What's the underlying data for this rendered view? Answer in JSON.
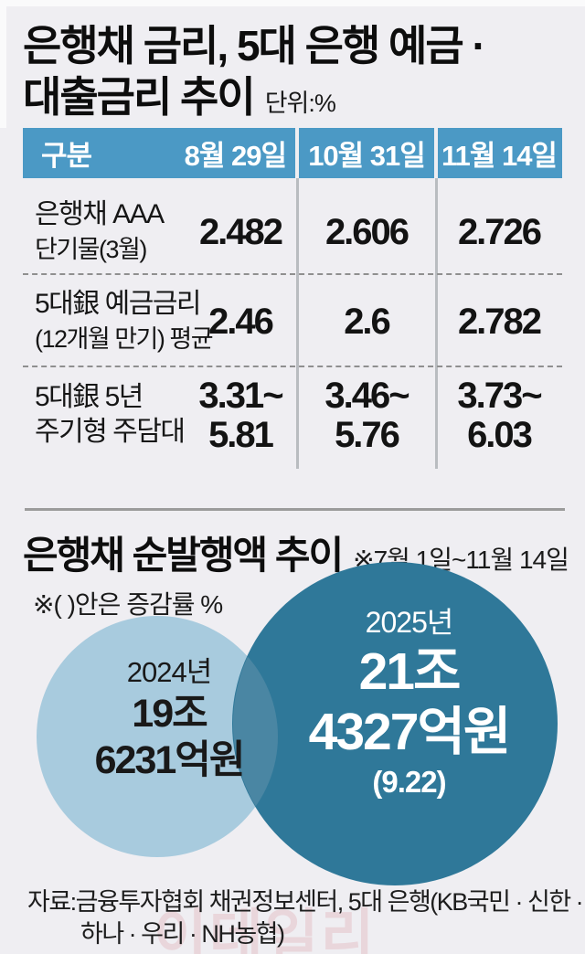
{
  "section1": {
    "title_line1": "은행채 금리, 5대 은행 예금 ·",
    "title_line2": "대출금리 추이",
    "unit_label": "단위:%",
    "table": {
      "header": [
        "구분",
        "8월 29일",
        "10월 31일",
        "11월 14일"
      ],
      "rows": [
        {
          "label_line1": "은행채 AAA",
          "label_line2": "단기물(3월)",
          "cells": [
            [
              "2.482"
            ],
            [
              "2.606"
            ],
            [
              "2.726"
            ]
          ]
        },
        {
          "label_line1": "5대銀 예금금리",
          "label_line2": "(12개월 만기) 평균",
          "cells": [
            [
              "2.46"
            ],
            [
              "2.6"
            ],
            [
              "2.782"
            ]
          ]
        },
        {
          "label_line1": "5대銀 5년",
          "label_line2": "주기형 주담대",
          "cells": [
            [
              "3.31~",
              "5.81"
            ],
            [
              "3.46~",
              "5.76"
            ],
            [
              "3.73~",
              "6.03"
            ]
          ]
        }
      ]
    }
  },
  "section2": {
    "title": "은행채 순발행액 추이",
    "period_note": "※7월 1일~11월 14일",
    "change_note": "※(  )안은 증감률 %",
    "bubbles": [
      {
        "year": "2024년",
        "amount_line1": "19조",
        "amount_line2": "6231억원",
        "change": ""
      },
      {
        "year": "2025년",
        "amount_line1": "21조",
        "amount_line2": "4327억원",
        "change": "(9.22)"
      }
    ]
  },
  "source": {
    "line1": "자료:금융투자협회 채권정보센터, 5대 은행(KB국민 · 신한 ·",
    "line2": "하나 · 우리 · NH농협)"
  },
  "watermark": "이데일리",
  "colors": {
    "background": "#efeef2",
    "table_header": "#4b99c5",
    "bubble_2024": "#a8cbde",
    "bubble_2025": "#2f7899",
    "bubble_overlap": "#4a86a3",
    "divider": "#9b9b9b"
  },
  "chart_data": [
    {
      "type": "table",
      "title": "은행채 금리, 5대 은행 예금 · 대출금리 추이",
      "unit": "%",
      "columns": [
        "구분",
        "8월 29일",
        "10월 31일",
        "11월 14일"
      ],
      "rows": [
        [
          "은행채 AAA 단기물(3월)",
          "2.482",
          "2.606",
          "2.726"
        ],
        [
          "5대銀 예금금리 (12개월 만기) 평균",
          "2.46",
          "2.6",
          "2.782"
        ],
        [
          "5대銀 5년 주기형 주담대",
          "3.31~5.81",
          "3.46~5.76",
          "3.73~6.03"
        ]
      ]
    },
    {
      "type": "bubble",
      "title": "은행채 순발행액 추이",
      "period": "7월 1일~11월 14일",
      "note": "( )안은 증감률 %",
      "unit": "조원",
      "series": [
        {
          "name": "2024년",
          "value": 19.6231,
          "label": "19조 6231억원"
        },
        {
          "name": "2025년",
          "value": 21.4327,
          "label": "21조 4327억원",
          "change_pct": 9.22
        }
      ],
      "legend_position": "none",
      "grid": false
    }
  ]
}
